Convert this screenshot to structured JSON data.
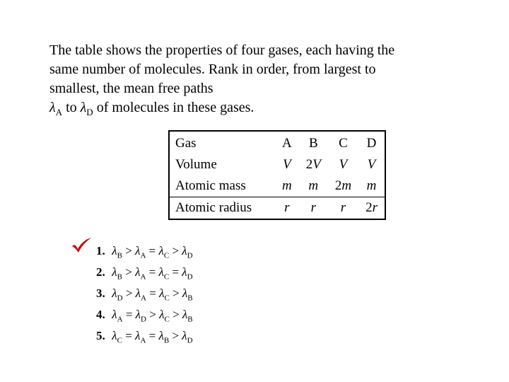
{
  "question": {
    "line1": "The table shows the properties of four gases, each ",
    "line2": "having the same number of molecules. Rank in ",
    "line3": "order, from largest to smallest, the mean free paths ",
    "lambda_a": "λ",
    "sub_a": "A",
    "to_word": " to ",
    "lambda_d": "λ",
    "sub_d": "D",
    "line4": " of molecules in these gases."
  },
  "table": {
    "headers": [
      "Gas",
      "A",
      "B",
      "C",
      "D"
    ],
    "rows": [
      {
        "label": "Volume",
        "cells": [
          "V",
          "2V",
          "V",
          "V"
        ],
        "italic": [
          true,
          false,
          true,
          true,
          true
        ],
        "prefixNum": [
          "",
          "2",
          "",
          ""
        ]
      },
      {
        "label": "Atomic mass",
        "cells": [
          "m",
          "m",
          "2m",
          "m"
        ],
        "prefixNum": [
          "",
          "",
          "2",
          ""
        ]
      },
      {
        "label": "Atomic radius",
        "cells": [
          "r",
          "r",
          "r",
          "2r"
        ],
        "prefixNum": [
          "",
          "",
          "",
          "2"
        ]
      }
    ]
  },
  "answers": {
    "correct_index": 0,
    "options": [
      {
        "num": "1.",
        "seq": [
          "B",
          ">",
          "A",
          "=",
          "C",
          ">",
          "D"
        ]
      },
      {
        "num": "2.",
        "seq": [
          "B",
          ">",
          "A",
          "=",
          "C",
          "=",
          "D"
        ]
      },
      {
        "num": "3.",
        "seq": [
          "D",
          ">",
          "A",
          "=",
          "C",
          ">",
          "B"
        ]
      },
      {
        "num": "4.",
        "seq": [
          "A",
          "=",
          "D",
          ">",
          "C",
          ">",
          "B"
        ]
      },
      {
        "num": "5.",
        "seq": [
          "C",
          "=",
          "A",
          "=",
          "B",
          ">",
          "D"
        ]
      }
    ]
  },
  "style": {
    "text_color": "#000000",
    "check_color": "#cc0000",
    "bg_color": "#ffffff"
  }
}
